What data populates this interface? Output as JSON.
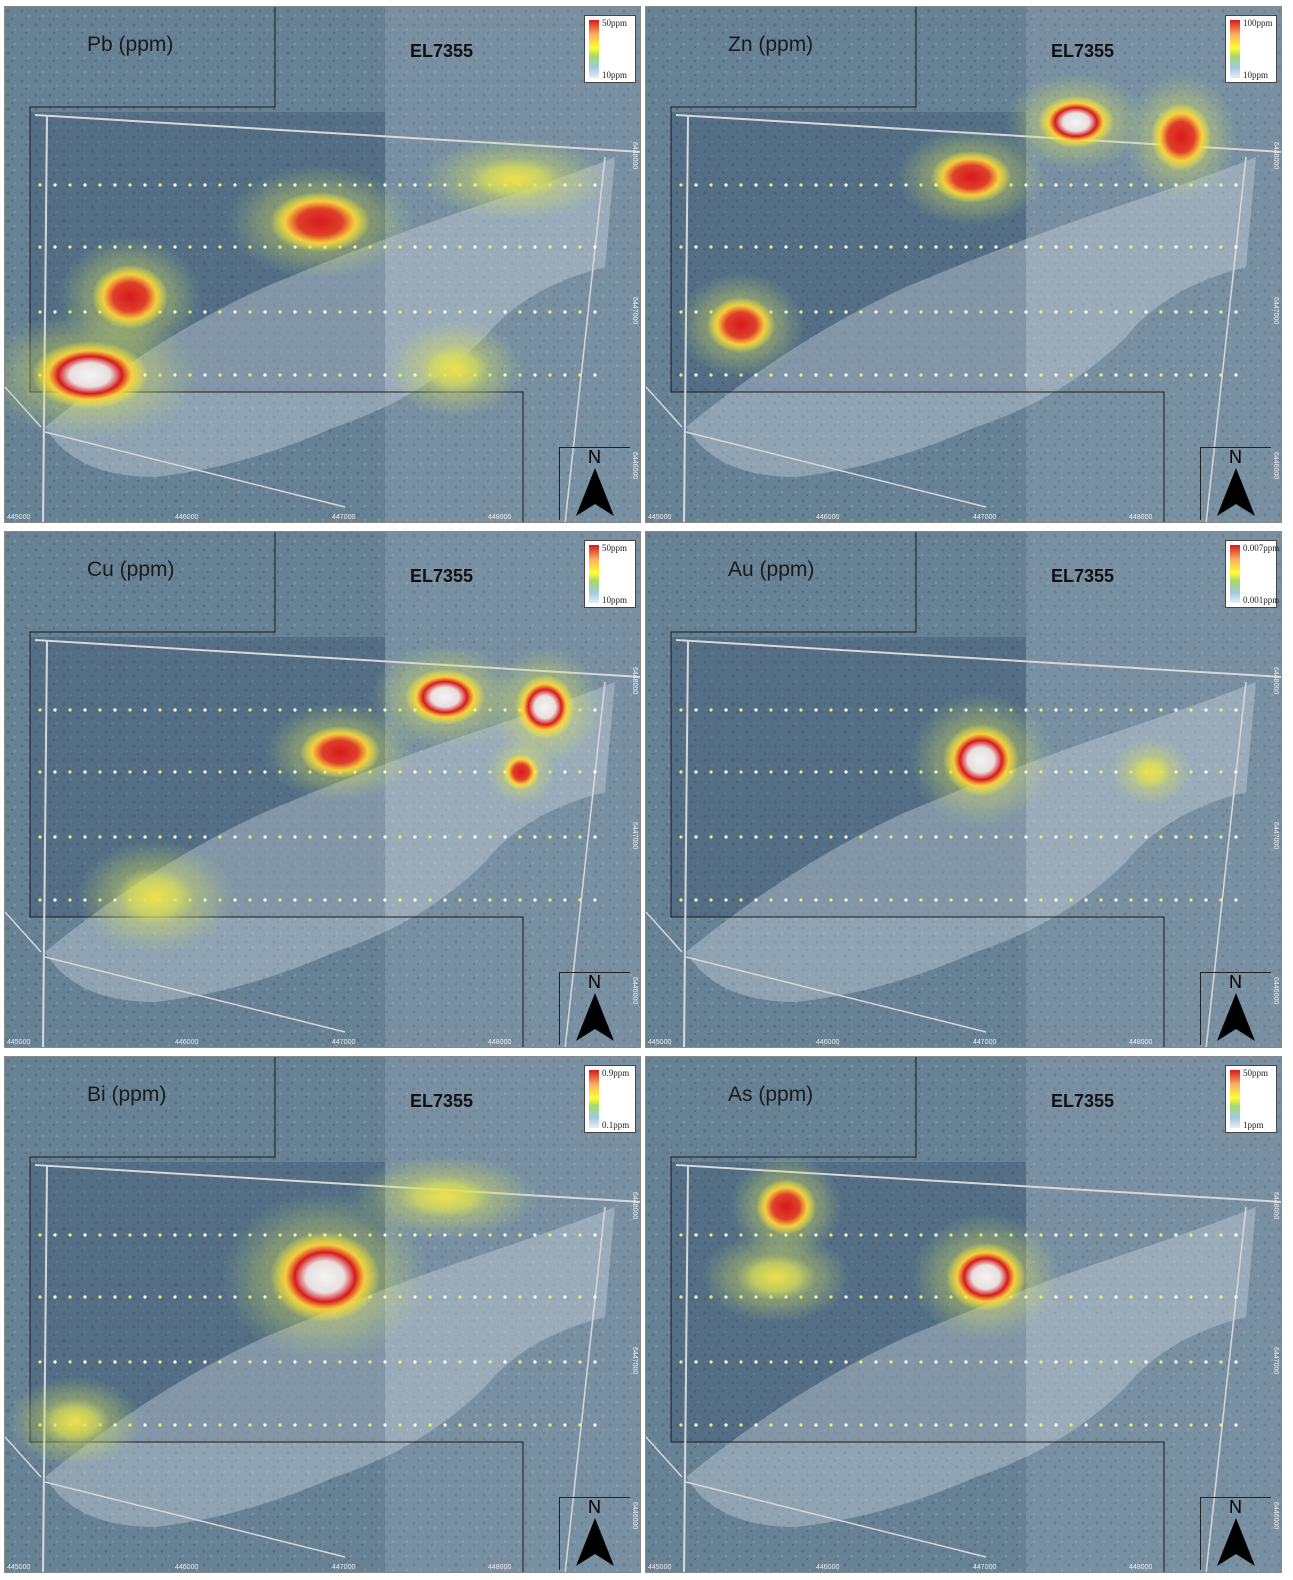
{
  "panels": [
    {
      "element": "Pb (ppm)",
      "license": "EL7355",
      "legend_max": "50ppm",
      "legend_min": "10ppm",
      "anomalies": [
        "south-west-strong",
        "west-medium",
        "north-central",
        "north-east-weak",
        "south-central-weak"
      ]
    },
    {
      "element": "Zn (ppm)",
      "license": "EL7355",
      "legend_max": "100ppm",
      "legend_min": "10ppm",
      "anomalies": [
        "north-central-east-strong",
        "north-east",
        "central",
        "south-west"
      ]
    },
    {
      "element": "Cu (ppm)",
      "license": "EL7355",
      "legend_max": "50ppm",
      "legend_min": "10ppm",
      "anomalies": [
        "north-central-east-strong",
        "north-east",
        "central",
        "east",
        "south-west-weak"
      ]
    },
    {
      "element": "Au (ppm)",
      "license": "EL7355",
      "legend_max": "0.007ppm",
      "legend_min": "0.001ppm",
      "anomalies": [
        "central-strong",
        "east-weak"
      ]
    },
    {
      "element": "Bi (ppm)",
      "license": "EL7355",
      "legend_max": "0.9ppm",
      "legend_min": "0.1ppm",
      "anomalies": [
        "central-strong",
        "north-east-weak",
        "south-west-weak"
      ]
    },
    {
      "element": "As (ppm)",
      "license": "EL7355",
      "legend_max": "50ppm",
      "legend_min": "1ppm",
      "anomalies": [
        "central-strong",
        "west",
        "central-west-weak"
      ]
    }
  ],
  "x_ticks": [
    "445000",
    "446000",
    "447000",
    "448000"
  ],
  "y_ticks": [
    "6448000",
    "6447000",
    "6446000"
  ],
  "north_label": "N",
  "colors": {
    "strong": "#d7191c",
    "medium": "#fdae61",
    "weak": "#ffff33",
    "background": "#5d7a8c"
  }
}
